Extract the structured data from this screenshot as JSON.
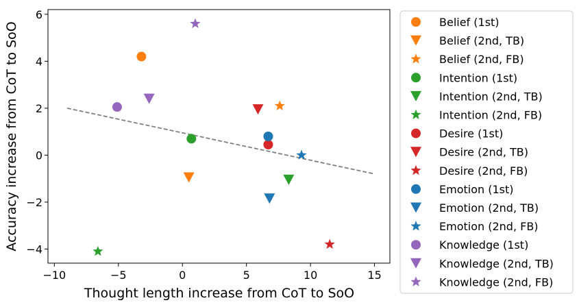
{
  "chart_data": {
    "type": "scatter",
    "xlabel": "Thought length increase from CoT to SoO",
    "ylabel": "Accuracy increase from CoT to SoO",
    "xlim": [
      -10.5,
      16.2
    ],
    "ylim": [
      -4.6,
      6.2
    ],
    "xticks": [
      -10,
      -5,
      0,
      5,
      10,
      15
    ],
    "yticks": [
      -4,
      -2,
      0,
      2,
      4,
      6
    ],
    "xtick_labels": [
      "−10",
      "−5",
      "0",
      "5",
      "10",
      "15"
    ],
    "ytick_labels": [
      "−4",
      "−2",
      "0",
      "2",
      "4",
      "6"
    ],
    "grid": false,
    "legend_position": "outside right",
    "trendline": {
      "style": "dashed",
      "color": "#808080",
      "x": [
        -9,
        15
      ],
      "y": [
        2.0,
        -0.8
      ]
    },
    "series": [
      {
        "name": "Belief (1st)",
        "color": "#ff7f0e",
        "marker": "circle",
        "points": [
          {
            "x": -3.2,
            "y": 4.2
          }
        ]
      },
      {
        "name": "Belief (2nd, TB)",
        "color": "#ff7f0e",
        "marker": "triangle-down",
        "points": [
          {
            "x": 0.5,
            "y": -0.95
          }
        ]
      },
      {
        "name": "Belief (2nd, FB)",
        "color": "#ff7f0e",
        "marker": "star",
        "points": [
          {
            "x": 7.6,
            "y": 2.1
          }
        ]
      },
      {
        "name": "Intention (1st)",
        "color": "#2ca02c",
        "marker": "circle",
        "points": [
          {
            "x": 0.7,
            "y": 0.7
          }
        ]
      },
      {
        "name": "Intention (2nd, TB)",
        "color": "#2ca02c",
        "marker": "triangle-down",
        "points": [
          {
            "x": 8.3,
            "y": -1.05
          }
        ]
      },
      {
        "name": "Intention (2nd, FB)",
        "color": "#2ca02c",
        "marker": "star",
        "points": [
          {
            "x": -6.6,
            "y": -4.1
          }
        ]
      },
      {
        "name": "Desire (1st)",
        "color": "#d62728",
        "marker": "circle",
        "points": [
          {
            "x": 6.7,
            "y": 0.45
          }
        ]
      },
      {
        "name": "Desire (2nd, TB)",
        "color": "#d62728",
        "marker": "triangle-down",
        "points": [
          {
            "x": 5.9,
            "y": 1.95
          }
        ]
      },
      {
        "name": "Desire (2nd, FB)",
        "color": "#d62728",
        "marker": "star",
        "points": [
          {
            "x": 11.5,
            "y": -3.8
          }
        ]
      },
      {
        "name": "Emotion (1st)",
        "color": "#1f77b4",
        "marker": "circle",
        "points": [
          {
            "x": 6.7,
            "y": 0.8
          }
        ]
      },
      {
        "name": "Emotion (2nd, TB)",
        "color": "#1f77b4",
        "marker": "triangle-down",
        "points": [
          {
            "x": 6.8,
            "y": -1.85
          }
        ]
      },
      {
        "name": "Emotion (2nd, FB)",
        "color": "#1f77b4",
        "marker": "star",
        "points": [
          {
            "x": 9.3,
            "y": 0.0
          }
        ]
      },
      {
        "name": "Knowledge (1st)",
        "color": "#9467bd",
        "marker": "circle",
        "points": [
          {
            "x": -5.1,
            "y": 2.05
          }
        ]
      },
      {
        "name": "Knowledge (2nd, TB)",
        "color": "#9467bd",
        "marker": "triangle-down",
        "points": [
          {
            "x": -2.6,
            "y": 2.4
          }
        ]
      },
      {
        "name": "Knowledge (2nd, FB)",
        "color": "#9467bd",
        "marker": "star",
        "points": [
          {
            "x": 1.0,
            "y": 5.6
          }
        ]
      }
    ]
  }
}
